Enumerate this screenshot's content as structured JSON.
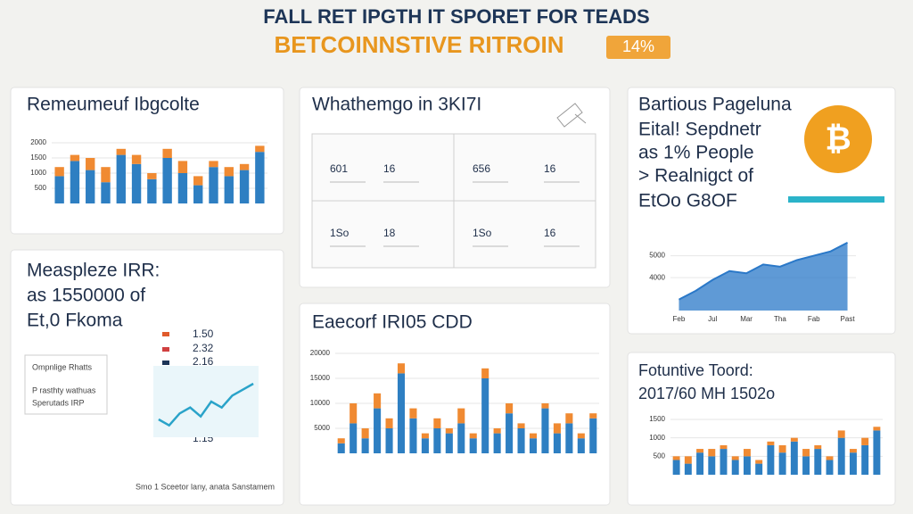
{
  "header": {
    "title": "FALL RET IPGTH IT SPORET FOR TEADS",
    "subtitle": "BETCOINNSTIVE RITROIN",
    "badge": "14%"
  },
  "table": {
    "caption": "Whathemgo in 3KI7I",
    "rows": [
      [
        "601",
        "16",
        "656",
        "16"
      ],
      [
        "1So",
        "18",
        "1So",
        "16"
      ]
    ]
  },
  "panels": [
    {
      "lines": [
        "Bartious Pageluna",
        "Eital! Sepdnetr",
        "as 1% People",
        "> Realnigct of",
        "EtOo G8OF"
      ]
    },
    {
      "lines": [
        "Measpleze IRR:",
        "as 1550000 of",
        "Et,0 Fkoma"
      ],
      "legend": [
        "1.50",
        "2.32",
        "2.16"
      ],
      "notes": [
        "Ompnlige Rhatts",
        "P rasthty wathuas",
        "Sperutads IRP"
      ],
      "label": "1.15",
      "footnote": "Smo 1 Sceetor lany, anata Sanstamem"
    }
  ],
  "chart_data": [
    {
      "type": "bar",
      "title": "Remeumeuf Ibgcolte",
      "categories": [
        null,
        null,
        null,
        null,
        null,
        null,
        null,
        null,
        null,
        null,
        null,
        null,
        null,
        null
      ],
      "series": [
        {
          "color": "#2e7fc2",
          "values": [
            900,
            1400,
            1100,
            700,
            1600,
            1300,
            800,
            1500,
            1000,
            600,
            1200,
            900,
            1100,
            1700
          ]
        },
        {
          "color": "#f08a32",
          "values": [
            300,
            200,
            400,
            500,
            200,
            300,
            200,
            300,
            400,
            300,
            200,
            300,
            200,
            200
          ]
        }
      ],
      "ylim": [
        0,
        2000
      ],
      "yticks": [
        500,
        1000,
        1500,
        2000
      ],
      "grid": true
    },
    {
      "type": "area",
      "categories": [
        "Feb",
        null,
        "Jul",
        null,
        "Mar",
        null,
        "Tha",
        null,
        "Fab",
        null,
        "Past"
      ],
      "values": [
        3000,
        3400,
        3900,
        4300,
        4200,
        4600,
        4500,
        4800,
        5000,
        5200,
        5600
      ],
      "color": "#2a78c8",
      "ylim": [
        2500,
        6000
      ],
      "yticks": [
        4000,
        5000
      ],
      "grid": true
    },
    {
      "type": "line",
      "categories": [
        null,
        null,
        null,
        null,
        null,
        null,
        null,
        null,
        null,
        null
      ],
      "values": [
        1.1,
        1.0,
        1.2,
        1.3,
        1.15,
        1.4,
        1.3,
        1.5,
        1.6,
        1.7
      ],
      "color": "#2aa3c9",
      "ylim": [
        0.8,
        2
      ]
    },
    {
      "type": "bar",
      "title": "Eaecorf IRI05 CDD",
      "categories": [
        null,
        null,
        null,
        null,
        null,
        null,
        null,
        null,
        null,
        null,
        null,
        null,
        null,
        null,
        null,
        null,
        null,
        null,
        null,
        null,
        null,
        null
      ],
      "series": [
        {
          "color": "#2e7fc2",
          "values": [
            2000,
            6000,
            3000,
            9000,
            5000,
            16000,
            7000,
            3000,
            5000,
            4000,
            6000,
            3000,
            15000,
            4000,
            8000,
            5000,
            3000,
            9000,
            4000,
            6000,
            3000,
            7000
          ]
        },
        {
          "color": "#f08a32",
          "values": [
            1000,
            4000,
            2000,
            3000,
            2000,
            2000,
            2000,
            1000,
            2000,
            1000,
            3000,
            1000,
            2000,
            1000,
            2000,
            1000,
            1000,
            1000,
            2000,
            2000,
            1000,
            1000
          ]
        }
      ],
      "ylim": [
        0,
        20000
      ],
      "yticks": [
        5000,
        10000,
        15000,
        20000
      ],
      "grid": true
    },
    {
      "type": "bar",
      "title": "Fotuntive Toord:",
      "subtitle": "2017/60 MH 1502o",
      "categories": [
        null,
        null,
        null,
        null,
        null,
        null,
        null,
        null,
        null,
        null,
        null,
        null,
        null,
        null,
        null,
        null,
        null,
        null
      ],
      "series": [
        {
          "color": "#2e7fc2",
          "values": [
            400,
            300,
            600,
            500,
            700,
            400,
            500,
            300,
            800,
            600,
            900,
            500,
            700,
            400,
            1000,
            600,
            800,
            1200
          ]
        },
        {
          "color": "#f08a32",
          "values": [
            100,
            200,
            100,
            200,
            100,
            100,
            200,
            100,
            100,
            200,
            100,
            200,
            100,
            100,
            200,
            100,
            200,
            100
          ]
        }
      ],
      "ylim": [
        0,
        1500
      ],
      "yticks": [
        500,
        1000,
        1500
      ],
      "grid": true
    }
  ]
}
